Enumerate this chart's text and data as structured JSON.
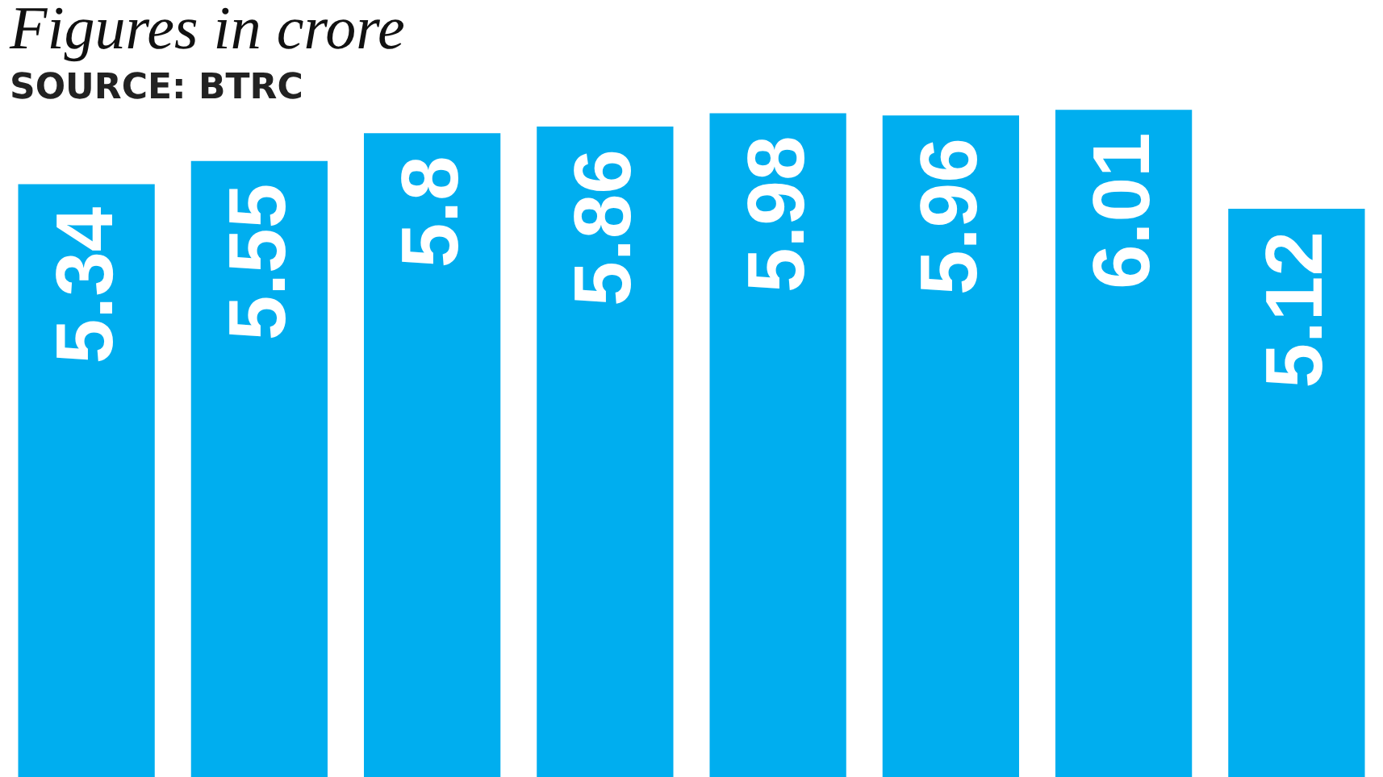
{
  "chart_data": {
    "type": "bar",
    "title": "Figures in crore",
    "annotations": [
      "SOURCE: BTRC"
    ],
    "categories": [
      null,
      null,
      null,
      null,
      null,
      null,
      null,
      null
    ],
    "values": [
      5.34,
      5.55,
      5.8,
      5.86,
      5.98,
      5.96,
      6.01,
      5.12
    ],
    "color": "#00aeef",
    "grid": false,
    "legend": false,
    "tick_labels": false,
    "data_labels": true
  }
}
